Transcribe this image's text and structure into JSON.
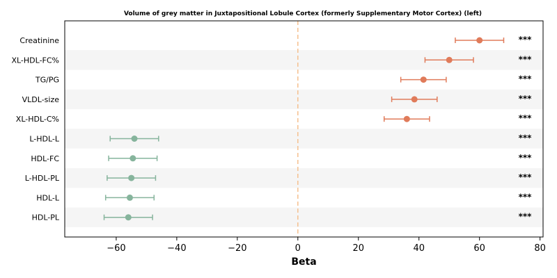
{
  "chart_data": {
    "type": "forest",
    "title": "Volume of grey matter in Juxtapositional Lobule Cortex (formerly Supplementary Motor Cortex) (left)",
    "xlabel": "Beta",
    "xlim": [
      -77,
      81
    ],
    "xticks": [
      -60,
      -40,
      -20,
      0,
      20,
      40,
      60,
      80
    ],
    "xtick_labels": [
      "−60",
      "−40",
      "−20",
      "0",
      "20",
      "40",
      "60",
      "80"
    ],
    "reference_line": 0,
    "grid": false,
    "alternating_row_shading": true,
    "colors": {
      "positive": "#e07b5a",
      "negative": "#86b49c",
      "reference_line": "#f5c08e",
      "row_shade": "#f5f5f5"
    },
    "rows": [
      {
        "label": "Creatinine",
        "beta": 60,
        "lo": 52,
        "hi": 68,
        "sig": "***"
      },
      {
        "label": "XL-HDL-FC%",
        "beta": 50,
        "lo": 42,
        "hi": 58,
        "sig": "***"
      },
      {
        "label": "TG/PG",
        "beta": 41.5,
        "lo": 34,
        "hi": 49,
        "sig": "***"
      },
      {
        "label": "VLDL-size",
        "beta": 38.5,
        "lo": 31,
        "hi": 46,
        "sig": "***"
      },
      {
        "label": "XL-HDL-C%",
        "beta": 36,
        "lo": 28.5,
        "hi": 43.5,
        "sig": "***"
      },
      {
        "label": "L-HDL-L",
        "beta": -54,
        "lo": -62,
        "hi": -46,
        "sig": "***"
      },
      {
        "label": "HDL-FC",
        "beta": -54.5,
        "lo": -62.5,
        "hi": -46.5,
        "sig": "***"
      },
      {
        "label": "L-HDL-PL",
        "beta": -55,
        "lo": -63,
        "hi": -47,
        "sig": "***"
      },
      {
        "label": "HDL-L",
        "beta": -55.5,
        "lo": -63.5,
        "hi": -47.5,
        "sig": "***"
      },
      {
        "label": "HDL-PL",
        "beta": -56,
        "lo": -64,
        "hi": -48,
        "sig": "***"
      }
    ]
  }
}
